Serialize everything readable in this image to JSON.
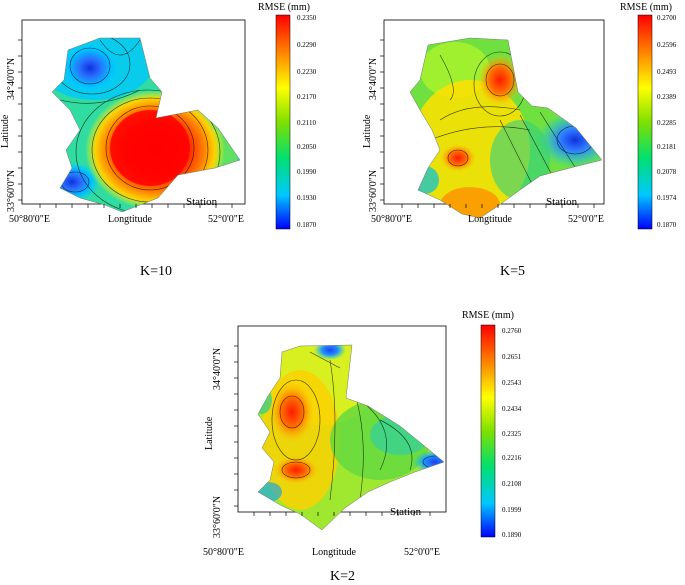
{
  "figure": {
    "panels": [
      {
        "caption": "K=10",
        "colorbar_title": "RMSE (mm)",
        "colorbar_ticks": [
          "0.2350",
          "0.2290",
          "0.2230",
          "0.2170",
          "0.2110",
          "0.2050",
          "0.1990",
          "0.1930",
          "0.1870"
        ],
        "ylabel": "Latitude",
        "xlabel": "Longtitude",
        "ytick_labels": [
          "34°40'0\"N",
          "33°60'0\"N"
        ],
        "xtick_labels": [
          "50°80'0\"E",
          "52°0'0\"E"
        ],
        "station_label": "Station"
      },
      {
        "caption": "K=5",
        "colorbar_title": "RMSE (mm)",
        "colorbar_ticks": [
          "0.2700",
          "0.2596",
          "0.2493",
          "0.2389",
          "0.2285",
          "0.2181",
          "0.2078",
          "0.1974",
          "0.1870"
        ],
        "ylabel": "Latitude",
        "xlabel": "Longtitude",
        "ytick_labels": [
          "34°40'0\"N",
          "33°60'0\"N"
        ],
        "xtick_labels": [
          "50°80'0\"E",
          "52°0'0\"E"
        ],
        "station_label": "Station"
      },
      {
        "caption": "K=2",
        "colorbar_title": "RMSE (mm)",
        "colorbar_ticks": [
          "0.2760",
          "0.2651",
          "0.2543",
          "0.2434",
          "0.2325",
          "0.2216",
          "0.2108",
          "0.1999",
          "0.1890"
        ],
        "ylabel": "Latitude",
        "xlabel": "Longtitude",
        "ytick_labels": [
          "34°40'0\"N",
          "33°60'0\"N"
        ],
        "xtick_labels": [
          "50°80'0\"E",
          "52°0'0\"E"
        ],
        "station_label": "Station"
      }
    ]
  },
  "chart_data": [
    {
      "type": "heatmap",
      "colorbar_label": "RMSE (mm)",
      "colorbar_range": [
        0.187,
        0.235
      ],
      "colormap": [
        "#0000ff",
        "#00c8ff",
        "#00e070",
        "#80e000",
        "#ffff00",
        "#ff8000",
        "#ff0000"
      ],
      "hotspots": [
        {
          "location": "center",
          "value": 0.235
        },
        {
          "location": "north-west",
          "value": 0.187
        },
        {
          "location": "south-west",
          "value": 0.187
        }
      ]
    },
    {
      "type": "heatmap",
      "colorbar_label": "RMSE (mm)",
      "colorbar_range": [
        0.187,
        0.27
      ],
      "colormap": [
        "#0000ff",
        "#00c8ff",
        "#00e070",
        "#80e000",
        "#ffff00",
        "#ff8000",
        "#ff0000"
      ],
      "hotspots": [
        {
          "location": "north-center",
          "value": 0.27
        },
        {
          "location": "west-center",
          "value": 0.27
        },
        {
          "location": "east",
          "value": 0.187
        }
      ]
    },
    {
      "type": "heatmap",
      "colorbar_label": "RMSE (mm)",
      "colorbar_range": [
        0.189,
        0.276
      ],
      "colormap": [
        "#0000ff",
        "#00c8ff",
        "#00e070",
        "#80e000",
        "#ffff00",
        "#ff8000",
        "#ff0000"
      ],
      "hotspots": [
        {
          "location": "west",
          "value": 0.276
        },
        {
          "location": "east",
          "value": 0.189
        },
        {
          "location": "north",
          "value": 0.21
        }
      ]
    }
  ]
}
